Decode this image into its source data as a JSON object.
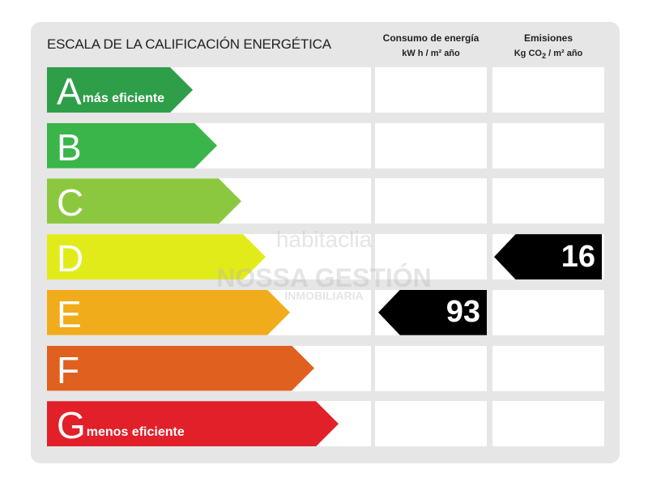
{
  "header": {
    "title": "ESCALA DE LA CALIFICACIÓN ENERGÉTICA",
    "consumo_title": "Consumo de energía",
    "consumo_unit": "kW h / m² año",
    "emisiones_title": "Emisiones",
    "emisiones_unit_pre": "Kg CO",
    "emisiones_unit_sub": "2",
    "emisiones_unit_post": " / m² año"
  },
  "ratings": [
    {
      "letter": "A",
      "note": "más eficiente",
      "color": "#2e9e48"
    },
    {
      "letter": "B",
      "note": "",
      "color": "#3ab54a"
    },
    {
      "letter": "C",
      "note": "",
      "color": "#8cc83f"
    },
    {
      "letter": "D",
      "note": "",
      "color": "#e2eb1a"
    },
    {
      "letter": "E",
      "note": "",
      "color": "#f0ac1a"
    },
    {
      "letter": "F",
      "note": "",
      "color": "#e0601f"
    },
    {
      "letter": "G",
      "note": "menos eficiente",
      "color": "#e2202a"
    }
  ],
  "consumo": {
    "value": "93",
    "rating": "E"
  },
  "emisiones": {
    "value": "16",
    "rating": "D"
  },
  "watermark": {
    "brand": "habitaclia",
    "agency": "NOSSA GESTIÓN",
    "agency_sub": "INMOBILIARIA"
  }
}
